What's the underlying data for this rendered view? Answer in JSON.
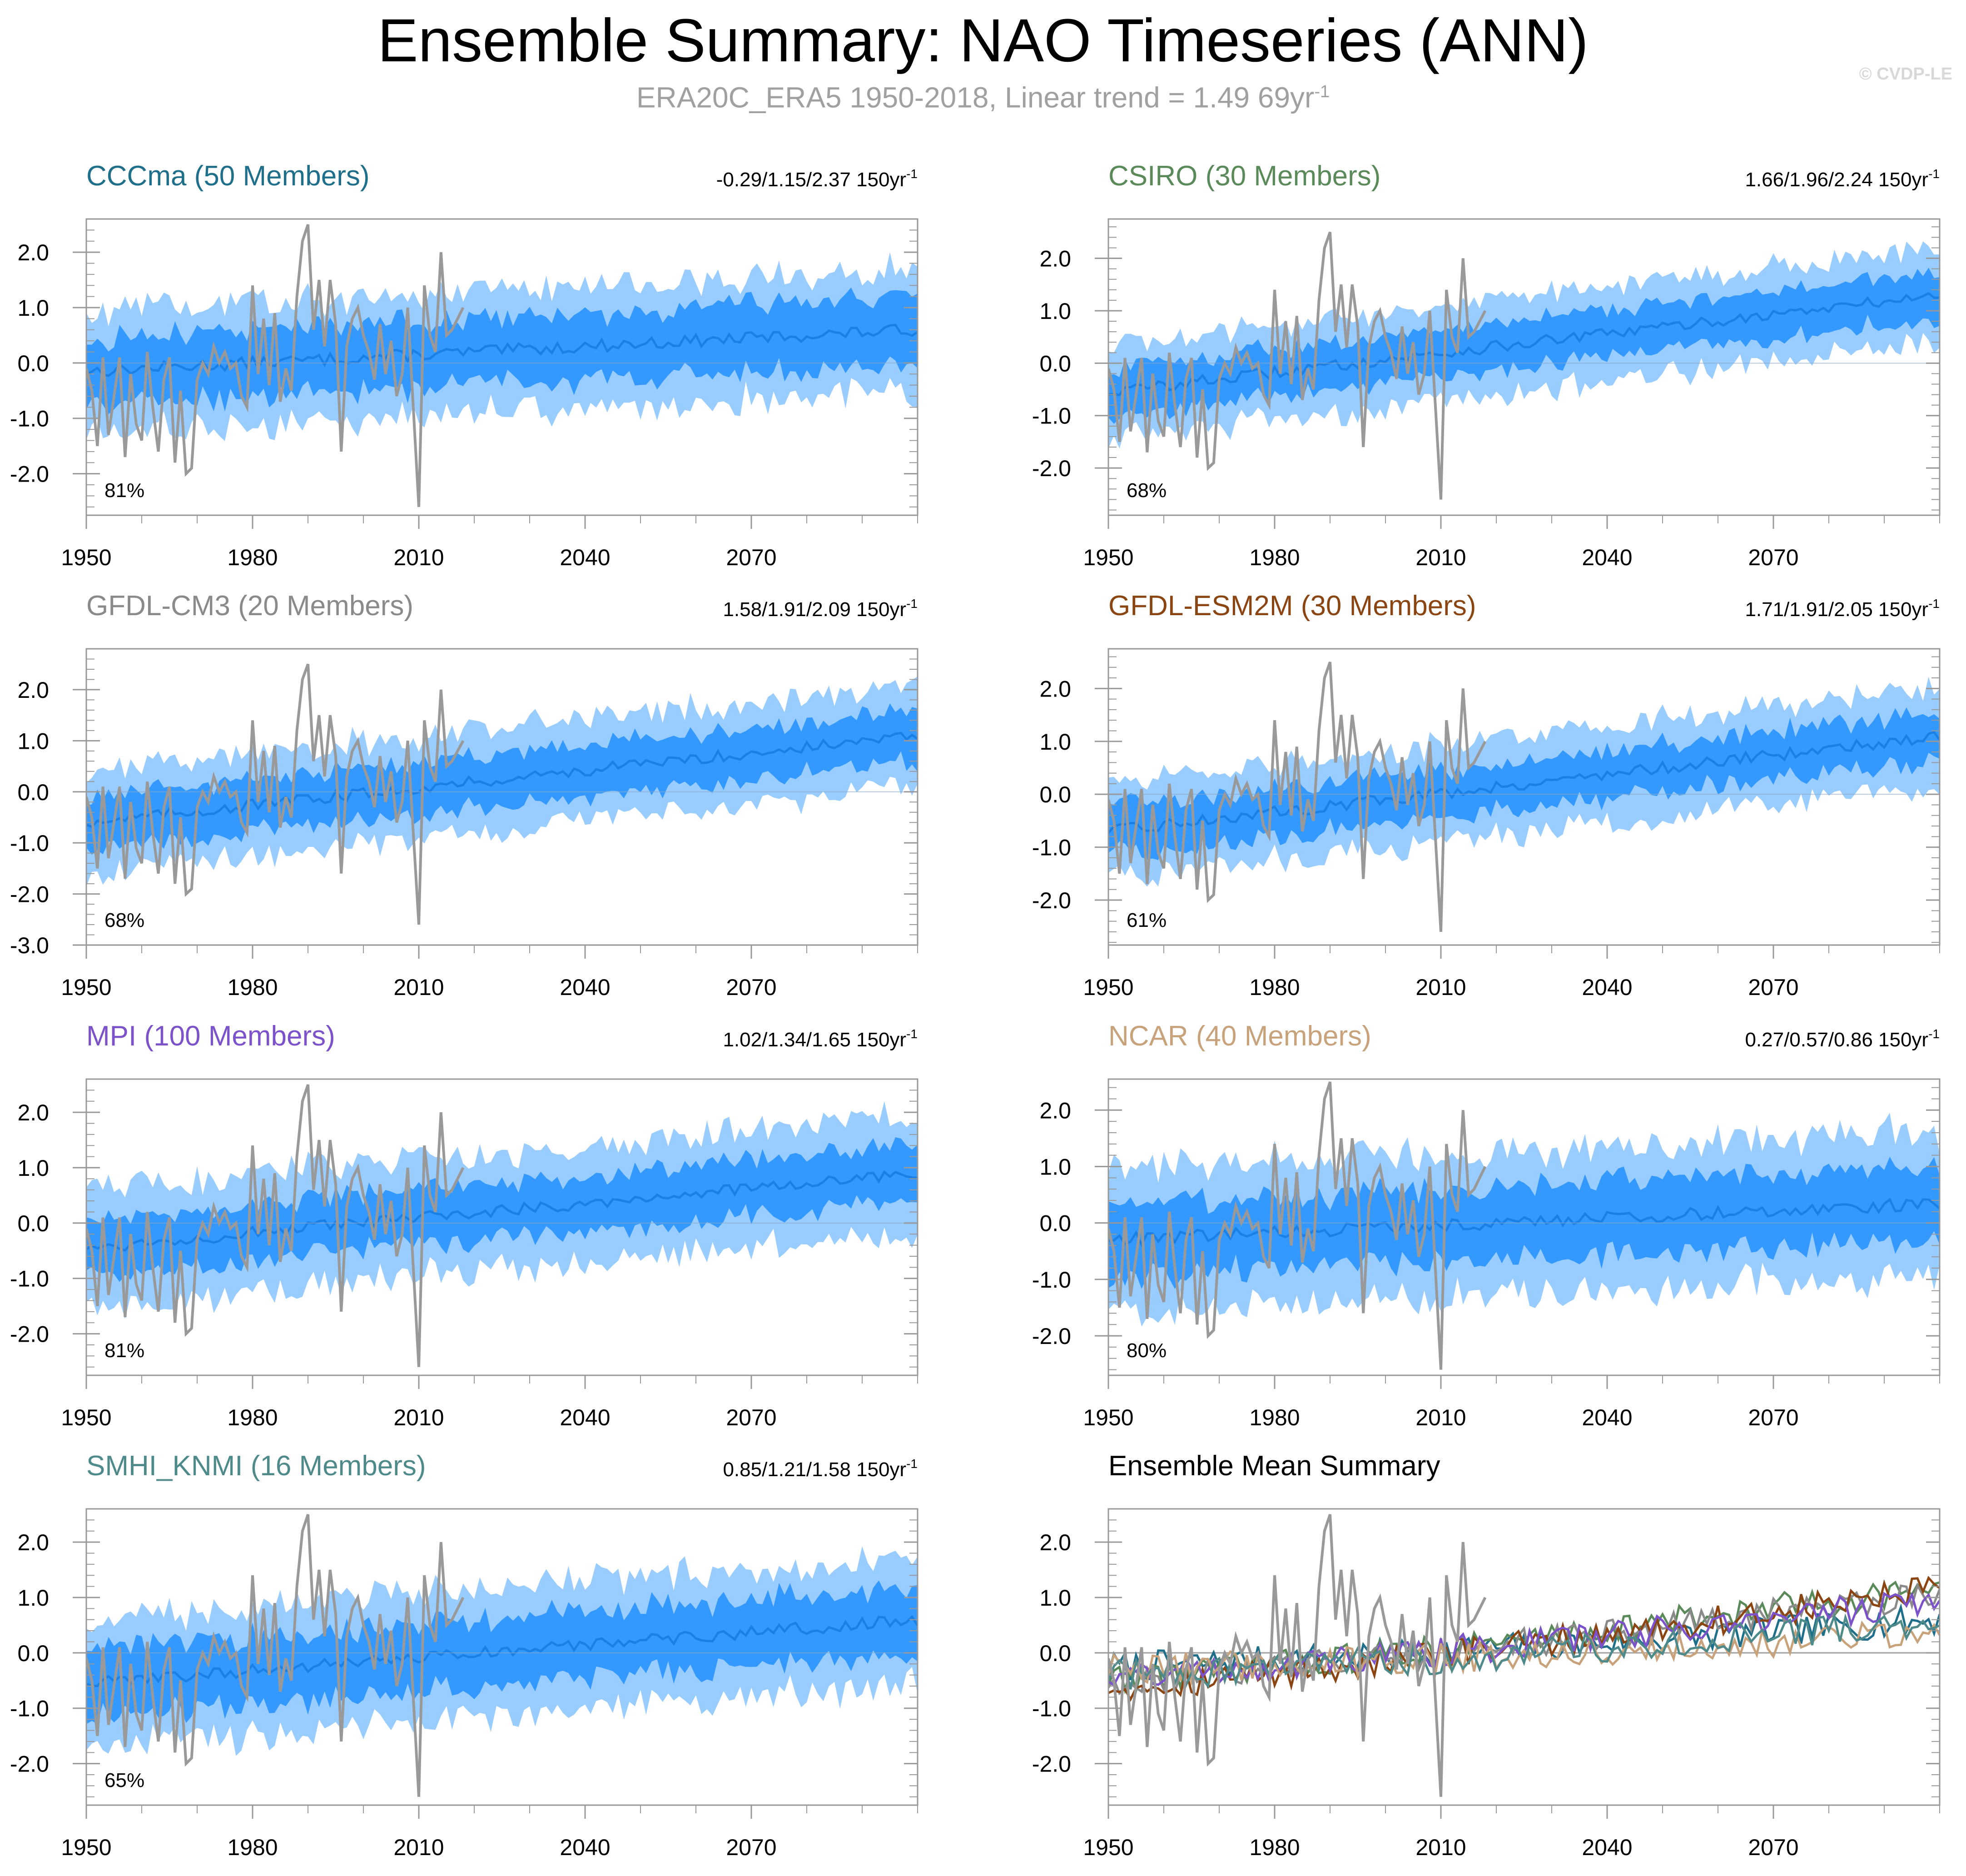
{
  "header": {
    "title": "Ensemble Summary: NAO Timeseries (ANN)",
    "subtitle_main": "ERA20C_ERA5 1950-2018, Linear trend = 1.49 69yr",
    "subtitle_exp": "-1",
    "watermark": "© CVDP-LE"
  },
  "colors": {
    "outer_band": "#99ccff",
    "inner_band": "#3399ff",
    "ens_mean_line": "#1a80e6",
    "observations": "#999999",
    "zero_line": "#a0a0a0"
  },
  "chart_data": [
    {
      "type": "line",
      "title": "CCCma (50 Members)",
      "title_color": "#1f6f8b",
      "trend_text": "-0.29/1.15/2.37 150yr",
      "trend_exp": "-1",
      "percent_label": "81%",
      "x_range": [
        1950,
        2100
      ],
      "x_ticks": [
        "1950",
        "1980",
        "2010",
        "2040",
        "2070"
      ],
      "ylim": [
        -2.75,
        2.6
      ],
      "y_ticks": [
        "2.0",
        "1.0",
        "0.0",
        "-1.0",
        "-2.0"
      ],
      "mean_start": -0.15,
      "mean_end": 0.6,
      "inner_halfwidth": 0.6,
      "outer_halfwidth": 1.1
    },
    {
      "type": "line",
      "title": "CSIRO (30 Members)",
      "title_color": "#5a8a5a",
      "trend_text": "1.66/1.96/2.24 150yr",
      "trend_exp": "-1",
      "percent_label": "68%",
      "x_range": [
        1950,
        2100
      ],
      "x_ticks": [
        "1950",
        "1980",
        "2010",
        "2040",
        "2070"
      ],
      "ylim": [
        -2.9,
        2.75
      ],
      "y_ticks": [
        "2.0",
        "1.0",
        "0.0",
        "-1.0",
        "-2.0"
      ],
      "mean_start": -0.55,
      "mean_end": 1.3,
      "inner_halfwidth": 0.45,
      "outer_halfwidth": 0.9
    },
    {
      "type": "line",
      "title": "GFDL-CM3 (20 Members)",
      "title_color": "#8a8a8a",
      "trend_text": "1.58/1.91/2.09 150yr",
      "trend_exp": "-1",
      "percent_label": "68%",
      "x_range": [
        1950,
        2100
      ],
      "x_ticks": [
        "1950",
        "1980",
        "2010",
        "2040",
        "2070"
      ],
      "ylim": [
        -3.0,
        2.8
      ],
      "y_ticks": [
        "2.0",
        "1.0",
        "0.0",
        "-1.0",
        "-2.0",
        "-3.0"
      ],
      "mean_start": -0.6,
      "mean_end": 1.1,
      "inner_halfwidth": 0.5,
      "outer_halfwidth": 1.0
    },
    {
      "type": "line",
      "title": "GFDL-ESM2M (30 Members)",
      "title_color": "#8b4513",
      "trend_text": "1.71/1.91/2.05 150yr",
      "trend_exp": "-1",
      "percent_label": "61%",
      "x_range": [
        1950,
        2100
      ],
      "x_ticks": [
        "1950",
        "1980",
        "2010",
        "2040",
        "2070"
      ],
      "ylim": [
        -2.85,
        2.75
      ],
      "y_ticks": [
        "2.0",
        "1.0",
        "0.0",
        "-1.0",
        "-2.0"
      ],
      "mean_start": -0.7,
      "mean_end": 1.1,
      "inner_halfwidth": 0.45,
      "outer_halfwidth": 0.9
    },
    {
      "type": "line",
      "title": "MPI (100 Members)",
      "title_color": "#7b52c9",
      "trend_text": "1.02/1.34/1.65 150yr",
      "trend_exp": "-1",
      "percent_label": "81%",
      "x_range": [
        1950,
        2100
      ],
      "x_ticks": [
        "1950",
        "1980",
        "2010",
        "2040",
        "2070"
      ],
      "ylim": [
        -2.75,
        2.6
      ],
      "y_ticks": [
        "2.0",
        "1.0",
        "0.0",
        "-1.0",
        "-2.0"
      ],
      "mean_start": -0.45,
      "mean_end": 0.9,
      "inner_halfwidth": 0.5,
      "outer_halfwidth": 1.05
    },
    {
      "type": "line",
      "title": "NCAR (40 Members)",
      "title_color": "#c8a27a",
      "trend_text": "0.27/0.57/0.86 150yr",
      "trend_exp": "-1",
      "percent_label": "80%",
      "x_range": [
        1950,
        2100
      ],
      "x_ticks": [
        "1950",
        "1980",
        "2010",
        "2040",
        "2070"
      ],
      "ylim": [
        -2.7,
        2.55
      ],
      "y_ticks": [
        "2.0",
        "1.0",
        "0.0",
        "-1.0",
        "-2.0"
      ],
      "mean_start": -0.3,
      "mean_end": 0.35,
      "inner_halfwidth": 0.65,
      "outer_halfwidth": 1.25
    },
    {
      "type": "line",
      "title": "SMHI_KNMI (16 Members)",
      "title_color": "#4f8a8b",
      "trend_text": "0.85/1.21/1.58 150yr",
      "trend_exp": "-1",
      "percent_label": "65%",
      "x_range": [
        1950,
        2100
      ],
      "x_ticks": [
        "1950",
        "1980",
        "2010",
        "2040",
        "2070"
      ],
      "ylim": [
        -2.75,
        2.6
      ],
      "y_ticks": [
        "2.0",
        "1.0",
        "0.0",
        "-1.0",
        "-2.0"
      ],
      "mean_start": -0.55,
      "mean_end": 0.6,
      "inner_halfwidth": 0.6,
      "outer_halfwidth": 1.15
    },
    {
      "type": "line",
      "title": "Ensemble Mean Summary",
      "title_color": "#000000",
      "summary": true,
      "x_range": [
        1950,
        2100
      ],
      "x_ticks": [
        "1950",
        "1980",
        "2010",
        "2040",
        "2070"
      ],
      "ylim": [
        -2.75,
        2.6
      ],
      "y_ticks": [
        "2.0",
        "1.0",
        "0.0",
        "-1.0",
        "-2.0"
      ],
      "series": [
        {
          "name": "CCCma",
          "color": "#1f6f8b",
          "start": -0.25,
          "end": 0.6
        },
        {
          "name": "CSIRO",
          "color": "#5a8a5a",
          "start": -0.45,
          "end": 1.2
        },
        {
          "name": "GFDL-CM3",
          "color": "#8a8a8a",
          "start": -0.5,
          "end": 1.1
        },
        {
          "name": "GFDL-ESM2M",
          "color": "#8b4513",
          "start": -0.6,
          "end": 1.15
        },
        {
          "name": "MPI",
          "color": "#7b52c9",
          "start": -0.4,
          "end": 0.95
        },
        {
          "name": "NCAR",
          "color": "#c8a27a",
          "start": -0.3,
          "end": 0.35
        },
        {
          "name": "SMHI_KNMI",
          "color": "#4f8a8b",
          "start": -0.4,
          "end": 0.55
        }
      ]
    }
  ],
  "observations": {
    "name": "ERA20C_ERA5",
    "start_year": 1950,
    "values": [
      -0.1,
      -0.5,
      -1.5,
      0.1,
      -1.3,
      -0.6,
      0.1,
      -1.7,
      -0.2,
      -1.1,
      -1.4,
      0.2,
      -0.8,
      -1.6,
      -0.3,
      0.1,
      -1.8,
      -0.5,
      -2.0,
      -1.9,
      -0.3,
      0.0,
      -0.2,
      0.3,
      0.0,
      0.2,
      -0.1,
      0.0,
      -0.6,
      -0.8,
      1.4,
      -0.2,
      0.8,
      -0.4,
      0.9,
      -0.7,
      -0.1,
      -0.5,
      1.2,
      2.2,
      2.5,
      0.6,
      1.5,
      0.3,
      1.5,
      0.7,
      -1.6,
      0.3,
      0.8,
      1.0,
      0.5,
      0.2,
      -0.3,
      0.7,
      -0.2,
      0.4,
      -0.6,
      -0.2,
      1.0,
      -0.8,
      -2.6,
      1.4,
      0.5,
      0.2,
      2.0,
      0.5,
      0.6,
      0.8,
      1.0
    ]
  }
}
